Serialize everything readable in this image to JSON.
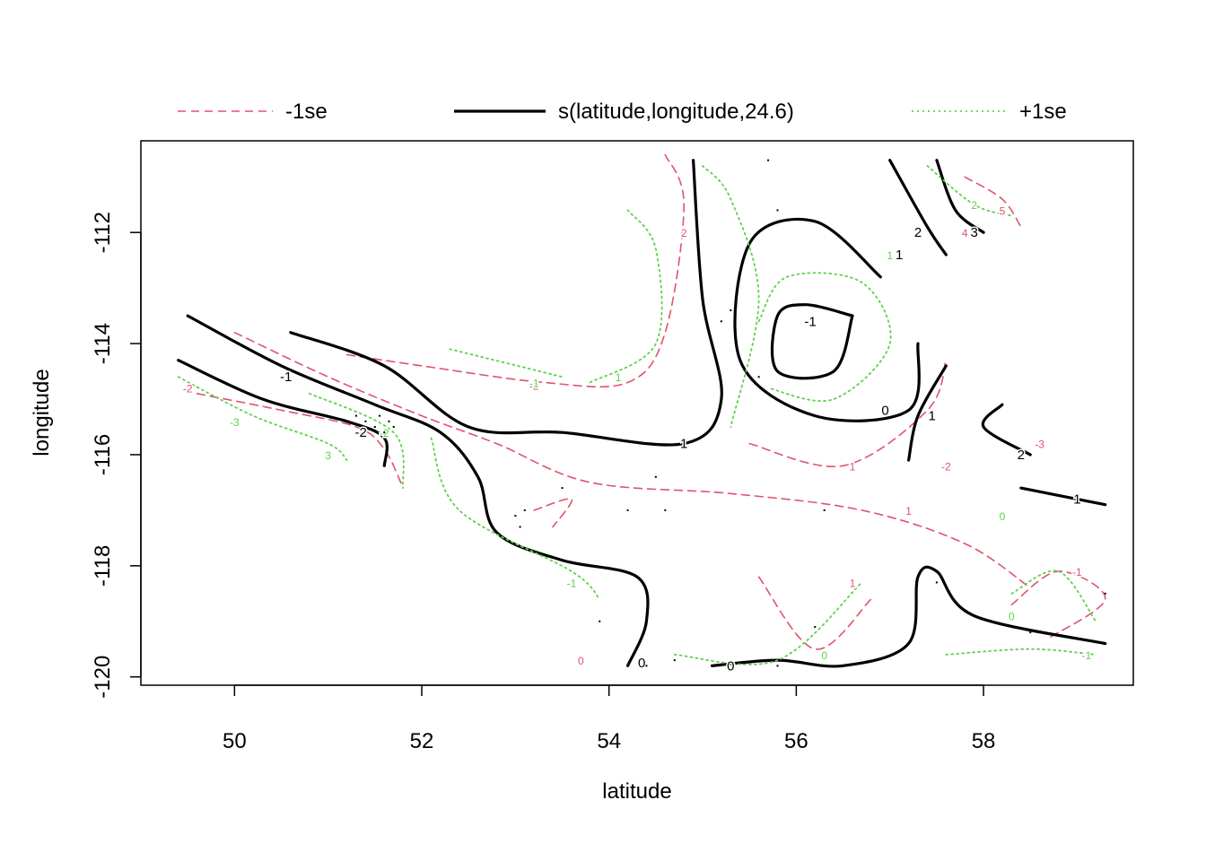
{
  "chart_data": {
    "type": "contour",
    "xlabel": "latitude",
    "ylabel": "longitude",
    "xlim": [
      49,
      59.6
    ],
    "ylim": [
      -120.15,
      -110.35
    ],
    "xticks": [
      50,
      52,
      54,
      56,
      58
    ],
    "yticks": [
      -120,
      -118,
      -116,
      -114,
      -112
    ],
    "grid": false,
    "legend": {
      "position": "top",
      "entries": [
        {
          "label": "-1se",
          "color": "#DF536B",
          "style": "dashed"
        },
        {
          "label": "s(latitude,longitude,24.6)",
          "color": "#000000",
          "style": "solid"
        },
        {
          "label": "+1se",
          "color": "#61D04F",
          "style": "dotted"
        }
      ]
    },
    "series": [
      {
        "name": "-1se",
        "color": "#DF536B",
        "contours": [
          {
            "level": "-2",
            "points": [
              [
                49.6,
                -114.9
              ],
              [
                50.5,
                -115.2
              ],
              [
                51.3,
                -115.5
              ],
              [
                51.6,
                -115.9
              ],
              [
                51.8,
                -116.6
              ]
            ]
          },
          {
            "level": "-1",
            "points": [
              [
                50.0,
                -113.8
              ],
              [
                51.0,
                -114.6
              ],
              [
                52.0,
                -115.3
              ],
              [
                52.8,
                -115.8
              ],
              [
                53.8,
                -116.5
              ],
              [
                55.3,
                -116.7
              ],
              [
                56.7,
                -117.0
              ],
              [
                57.8,
                -117.6
              ],
              [
                58.5,
                -118.4
              ]
            ]
          },
          {
            "level": "1",
            "points": [
              [
                55.6,
                -118.2
              ],
              [
                56.2,
                -119.5
              ],
              [
                56.8,
                -118.6
              ]
            ]
          },
          {
            "level": "2",
            "points": [
              [
                51.2,
                -114.2
              ],
              [
                52.0,
                -114.4
              ],
              [
                53.3,
                -114.7
              ],
              [
                54.2,
                -114.7
              ],
              [
                54.6,
                -113.8
              ],
              [
                54.8,
                -111.5
              ],
              [
                54.6,
                -110.6
              ]
            ]
          },
          {
            "level": "5",
            "points": [
              [
                57.8,
                -111.0
              ],
              [
                58.2,
                -111.4
              ],
              [
                58.4,
                -111.9
              ]
            ]
          },
          {
            "level": "1",
            "points": [
              [
                55.5,
                -115.8
              ],
              [
                56.5,
                -116.2
              ],
              [
                57.4,
                -115.2
              ],
              [
                57.6,
                -114.3
              ]
            ]
          },
          {
            "level": "-1",
            "points": [
              [
                58.3,
                -118.7
              ],
              [
                58.8,
                -118.1
              ],
              [
                59.3,
                -118.6
              ],
              [
                58.7,
                -119.3
              ]
            ]
          },
          {
            "level": "2",
            "points": [
              [
                53.2,
                -117.0
              ],
              [
                53.6,
                -116.8
              ],
              [
                53.4,
                -117.3
              ]
            ]
          }
        ]
      },
      {
        "name": "s(latitude,longitude,24.6)",
        "color": "#000000",
        "contours": [
          {
            "level": "-1",
            "points": [
              [
                49.5,
                -113.5
              ],
              [
                50.5,
                -114.4
              ],
              [
                51.5,
                -115.1
              ],
              [
                52.2,
                -115.6
              ],
              [
                52.6,
                -116.4
              ],
              [
                52.8,
                -117.4
              ],
              [
                53.5,
                -117.9
              ],
              [
                54.3,
                -118.2
              ],
              [
                54.4,
                -119.0
              ],
              [
                54.2,
                -119.8
              ]
            ]
          },
          {
            "level": "-2",
            "points": [
              [
                49.4,
                -114.3
              ],
              [
                50.3,
                -115.0
              ],
              [
                51.2,
                -115.4
              ],
              [
                51.6,
                -115.7
              ],
              [
                51.6,
                -116.2
              ]
            ]
          },
          {
            "level": "1",
            "points": [
              [
                50.6,
                -113.8
              ],
              [
                51.6,
                -114.4
              ],
              [
                52.5,
                -115.5
              ],
              [
                53.5,
                -115.6
              ],
              [
                54.8,
                -115.8
              ],
              [
                55.2,
                -115.0
              ],
              [
                55.0,
                -113.2
              ],
              [
                54.9,
                -110.7
              ]
            ]
          },
          {
            "level": "-1",
            "points": [
              [
                56.6,
                -113.5
              ],
              [
                56.4,
                -114.5
              ],
              [
                55.8,
                -114.5
              ],
              [
                55.8,
                -113.5
              ],
              [
                56.1,
                -113.3
              ],
              [
                56.6,
                -113.5
              ]
            ]
          },
          {
            "level": "0",
            "points": [
              [
                56.9,
                -112.8
              ],
              [
                56.2,
                -111.8
              ],
              [
                55.5,
                -112.2
              ],
              [
                55.4,
                -114.3
              ],
              [
                56.2,
                -115.3
              ],
              [
                57.2,
                -115.2
              ],
              [
                57.3,
                -114.0
              ]
            ]
          },
          {
            "level": "0",
            "points": [
              [
                55.1,
                -119.8
              ],
              [
                55.8,
                -119.7
              ],
              [
                56.5,
                -119.8
              ],
              [
                57.2,
                -119.4
              ],
              [
                57.3,
                -118.2
              ],
              [
                57.5,
                -118.1
              ],
              [
                57.9,
                -118.9
              ],
              [
                59.3,
                -119.4
              ]
            ]
          },
          {
            "level": "1",
            "points": [
              [
                57.2,
                -116.1
              ],
              [
                57.3,
                -115.3
              ],
              [
                57.6,
                -114.4
              ]
            ]
          },
          {
            "level": "2",
            "points": [
              [
                57.0,
                -110.7
              ],
              [
                57.4,
                -111.9
              ],
              [
                57.6,
                -112.4
              ]
            ]
          },
          {
            "level": "3",
            "points": [
              [
                57.5,
                -110.7
              ],
              [
                57.7,
                -111.6
              ],
              [
                58.0,
                -112.0
              ]
            ]
          },
          {
            "level": "2",
            "points": [
              [
                58.2,
                -115.1
              ],
              [
                58.0,
                -115.5
              ],
              [
                58.5,
                -116.0
              ]
            ]
          },
          {
            "level": "1",
            "points": [
              [
                58.4,
                -116.6
              ],
              [
                59.3,
                -116.9
              ]
            ]
          }
        ]
      },
      {
        "name": "+1se",
        "color": "#61D04F",
        "contours": [
          {
            "level": "-3",
            "points": [
              [
                49.4,
                -114.6
              ],
              [
                50.2,
                -115.3
              ],
              [
                51.0,
                -115.8
              ],
              [
                51.2,
                -116.1
              ]
            ]
          },
          {
            "level": "-2",
            "points": [
              [
                50.8,
                -114.9
              ],
              [
                51.7,
                -115.6
              ],
              [
                51.8,
                -116.6
              ]
            ]
          },
          {
            "level": "-1",
            "points": [
              [
                52.1,
                -115.7
              ],
              [
                52.4,
                -117.0
              ],
              [
                53.6,
                -118.1
              ],
              [
                53.9,
                -118.6
              ]
            ]
          },
          {
            "level": "0",
            "points": [
              [
                53.8,
                -114.7
              ],
              [
                54.5,
                -114.0
              ],
              [
                54.5,
                -112.3
              ],
              [
                54.2,
                -111.6
              ]
            ]
          },
          {
            "level": "0",
            "points": [
              [
                55.6,
                -113.6
              ],
              [
                55.9,
                -112.8
              ],
              [
                56.7,
                -112.9
              ],
              [
                57.0,
                -114.0
              ],
              [
                56.4,
                -115.0
              ],
              [
                55.7,
                -114.8
              ]
            ]
          },
          {
            "level": "0",
            "points": [
              [
                55.0,
                -110.8
              ],
              [
                55.3,
                -111.4
              ],
              [
                55.6,
                -113.2
              ],
              [
                55.3,
                -115.5
              ]
            ]
          },
          {
            "level": "0",
            "points": [
              [
                54.7,
                -119.6
              ],
              [
                55.8,
                -119.7
              ],
              [
                56.7,
                -118.3
              ]
            ]
          },
          {
            "level": "0",
            "points": [
              [
                58.3,
                -118.5
              ],
              [
                58.8,
                -118.1
              ],
              [
                59.2,
                -119.0
              ]
            ]
          },
          {
            "level": "-1",
            "points": [
              [
                57.6,
                -119.6
              ],
              [
                58.5,
                -119.5
              ],
              [
                59.2,
                -119.6
              ]
            ]
          },
          {
            "level": "1",
            "points": [
              [
                52.3,
                -114.1
              ],
              [
                53.5,
                -114.6
              ]
            ]
          },
          {
            "level": "2",
            "points": [
              [
                57.4,
                -110.8
              ],
              [
                57.9,
                -111.5
              ],
              [
                58.3,
                -111.7
              ]
            ]
          }
        ]
      }
    ],
    "contour_labels": [
      {
        "text": "-1",
        "color": "#000000",
        "x": 50.55,
        "y": -114.6
      },
      {
        "text": "-2",
        "color": "#000000",
        "x": 51.35,
        "y": -115.6
      },
      {
        "text": "1",
        "color": "#000000",
        "x": 54.8,
        "y": -115.8
      },
      {
        "text": "-1",
        "color": "#000000",
        "x": 56.15,
        "y": -113.6
      },
      {
        "text": "0",
        "color": "#000000",
        "x": 56.95,
        "y": -115.2
      },
      {
        "text": "0",
        "color": "#000000",
        "x": 54.35,
        "y": -119.75
      },
      {
        "text": "0",
        "color": "#000000",
        "x": 55.3,
        "y": -119.8
      },
      {
        "text": "1",
        "color": "#000000",
        "x": 57.45,
        "y": -115.3
      },
      {
        "text": "2",
        "color": "#000000",
        "x": 57.3,
        "y": -112.0
      },
      {
        "text": "3",
        "color": "#000000",
        "x": 57.9,
        "y": -112.0
      },
      {
        "text": "2",
        "color": "#000000",
        "x": 58.4,
        "y": -116.0
      },
      {
        "text": "1",
        "color": "#000000",
        "x": 59.0,
        "y": -116.8
      },
      {
        "text": "1",
        "color": "#000000",
        "x": 57.1,
        "y": -112.4
      },
      {
        "text": "-2",
        "color": "#DF536B",
        "x": 49.5,
        "y": -114.8
      },
      {
        "text": "-2",
        "color": "#DF536B",
        "x": 53.2,
        "y": -114.75
      },
      {
        "text": "2",
        "color": "#DF536B",
        "x": 54.8,
        "y": -112.0
      },
      {
        "text": "1",
        "color": "#DF536B",
        "x": 56.6,
        "y": -116.2
      },
      {
        "text": "1",
        "color": "#DF536B",
        "x": 57.2,
        "y": -117.0
      },
      {
        "text": "1",
        "color": "#DF536B",
        "x": 56.6,
        "y": -118.3
      },
      {
        "text": "-2",
        "color": "#DF536B",
        "x": 57.6,
        "y": -116.2
      },
      {
        "text": "5",
        "color": "#DF536B",
        "x": 58.2,
        "y": -111.6
      },
      {
        "text": "4",
        "color": "#DF536B",
        "x": 57.8,
        "y": -112.0
      },
      {
        "text": "-1",
        "color": "#DF536B",
        "x": 59.0,
        "y": -118.1
      },
      {
        "text": "-3",
        "color": "#DF536B",
        "x": 58.6,
        "y": -115.8
      },
      {
        "text": "0",
        "color": "#DF536B",
        "x": 53.7,
        "y": -119.7
      },
      {
        "text": "3",
        "color": "#61D04F",
        "x": 51.0,
        "y": -116.0
      },
      {
        "text": "-3",
        "color": "#61D04F",
        "x": 50.0,
        "y": -115.4
      },
      {
        "text": "-2",
        "color": "#61D04F",
        "x": 51.6,
        "y": -115.6
      },
      {
        "text": "-1",
        "color": "#61D04F",
        "x": 53.6,
        "y": -118.3
      },
      {
        "text": "-1",
        "color": "#61D04F",
        "x": 53.2,
        "y": -114.7
      },
      {
        "text": "1",
        "color": "#61D04F",
        "x": 54.1,
        "y": -114.6
      },
      {
        "text": "0",
        "color": "#61D04F",
        "x": 56.3,
        "y": -119.6
      },
      {
        "text": "0",
        "color": "#61D04F",
        "x": 58.2,
        "y": -117.1
      },
      {
        "text": "0",
        "color": "#61D04F",
        "x": 58.3,
        "y": -118.9
      },
      {
        "text": "-1",
        "color": "#61D04F",
        "x": 59.1,
        "y": -119.6
      },
      {
        "text": "1",
        "color": "#61D04F",
        "x": 57.0,
        "y": -112.4
      },
      {
        "text": "2",
        "color": "#61D04F",
        "x": 57.9,
        "y": -111.5
      }
    ],
    "data_points": [
      [
        51.3,
        -115.3
      ],
      [
        51.4,
        -115.4
      ],
      [
        51.5,
        -115.5
      ],
      [
        51.6,
        -115.6
      ],
      [
        51.7,
        -115.5
      ],
      [
        51.65,
        -115.4
      ],
      [
        51.55,
        -115.3
      ],
      [
        53.0,
        -117.1
      ],
      [
        53.05,
        -117.3
      ],
      [
        53.1,
        -117.0
      ],
      [
        53.5,
        -116.6
      ],
      [
        54.2,
        -117.0
      ],
      [
        54.5,
        -116.4
      ],
      [
        54.6,
        -117.0
      ],
      [
        54.4,
        -119.8
      ],
      [
        54.7,
        -119.7
      ],
      [
        55.6,
        -114.6
      ],
      [
        55.3,
        -113.4
      ],
      [
        55.2,
        -113.6
      ],
      [
        56.3,
        -117.0
      ],
      [
        56.2,
        -119.1
      ],
      [
        57.5,
        -118.3
      ],
      [
        58.5,
        -119.2
      ],
      [
        59.3,
        -118.5
      ],
      [
        55.8,
        -111.6
      ],
      [
        55.7,
        -110.7
      ],
      [
        53.9,
        -119.0
      ],
      [
        55.8,
        -119.8
      ]
    ]
  }
}
